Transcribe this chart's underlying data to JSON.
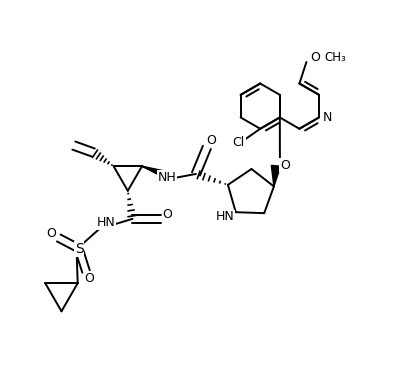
{
  "background_color": "#ffffff",
  "line_color": "#000000",
  "lw": 1.4,
  "figsize": [
    3.96,
    3.8
  ],
  "dpi": 100,
  "xlim": [
    0,
    10
  ],
  "ylim": [
    0,
    9.6
  ]
}
